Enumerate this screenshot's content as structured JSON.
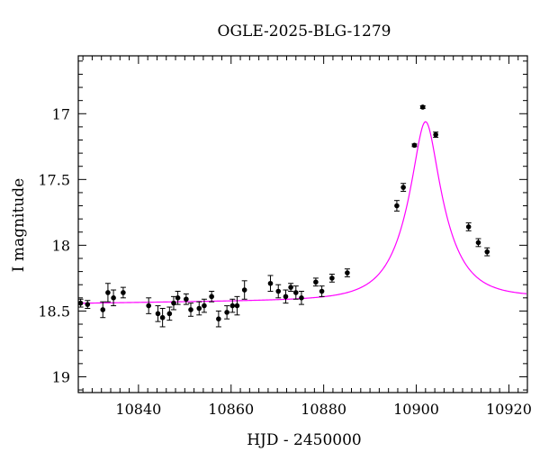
{
  "chart_data": {
    "type": "scatter",
    "title": "OGLE-2025-BLG-1279",
    "xlabel": "HJD - 2450000",
    "ylabel": "I magnitude",
    "xlim": [
      10827,
      10924
    ],
    "ylim": [
      19.12,
      16.56
    ],
    "y_inverted": true,
    "grid": false,
    "x_ticks": [
      10840,
      10860,
      10880,
      10900,
      10920
    ],
    "x_tick_labels": [
      "10840",
      "10860",
      "10880",
      "10900",
      "10920"
    ],
    "y_ticks": [
      17,
      17.5,
      18,
      18.5,
      19
    ],
    "y_tick_labels": [
      "17",
      "17.5",
      "18",
      "18.5",
      "19"
    ],
    "series": [
      {
        "marker": "filled-circle",
        "color": "#000000",
        "points": [
          {
            "x": 10827.5,
            "y": 18.44,
            "err": 0.03
          },
          {
            "x": 10829.0,
            "y": 18.45,
            "err": 0.03
          },
          {
            "x": 10832.3,
            "y": 18.49,
            "err": 0.06
          },
          {
            "x": 10833.4,
            "y": 18.36,
            "err": 0.07
          },
          {
            "x": 10834.6,
            "y": 18.4,
            "err": 0.06
          },
          {
            "x": 10836.7,
            "y": 18.36,
            "err": 0.04
          },
          {
            "x": 10842.2,
            "y": 18.46,
            "err": 0.06
          },
          {
            "x": 10844.2,
            "y": 18.52,
            "err": 0.06
          },
          {
            "x": 10845.2,
            "y": 18.55,
            "err": 0.07
          },
          {
            "x": 10846.7,
            "y": 18.52,
            "err": 0.05
          },
          {
            "x": 10847.6,
            "y": 18.44,
            "err": 0.05
          },
          {
            "x": 10848.5,
            "y": 18.4,
            "err": 0.05
          },
          {
            "x": 10850.3,
            "y": 18.41,
            "err": 0.04
          },
          {
            "x": 10851.3,
            "y": 18.49,
            "err": 0.05
          },
          {
            "x": 10853.1,
            "y": 18.48,
            "err": 0.05
          },
          {
            "x": 10854.2,
            "y": 18.46,
            "err": 0.05
          },
          {
            "x": 10855.8,
            "y": 18.39,
            "err": 0.04
          },
          {
            "x": 10857.3,
            "y": 18.56,
            "err": 0.06
          },
          {
            "x": 10859.1,
            "y": 18.51,
            "err": 0.05
          },
          {
            "x": 10860.3,
            "y": 18.46,
            "err": 0.05
          },
          {
            "x": 10861.3,
            "y": 18.46,
            "err": 0.07
          },
          {
            "x": 10862.9,
            "y": 18.34,
            "err": 0.07
          },
          {
            "x": 10868.5,
            "y": 18.29,
            "err": 0.06
          },
          {
            "x": 10870.2,
            "y": 18.35,
            "err": 0.05
          },
          {
            "x": 10871.8,
            "y": 18.39,
            "err": 0.05
          },
          {
            "x": 10872.9,
            "y": 18.32,
            "err": 0.03
          },
          {
            "x": 10874.0,
            "y": 18.36,
            "err": 0.05
          },
          {
            "x": 10875.2,
            "y": 18.4,
            "err": 0.05
          },
          {
            "x": 10878.3,
            "y": 18.28,
            "err": 0.03
          },
          {
            "x": 10879.6,
            "y": 18.35,
            "err": 0.04
          },
          {
            "x": 10881.8,
            "y": 18.25,
            "err": 0.03
          },
          {
            "x": 10885.1,
            "y": 18.21,
            "err": 0.03
          },
          {
            "x": 10895.8,
            "y": 17.7,
            "err": 0.04
          },
          {
            "x": 10897.2,
            "y": 17.56,
            "err": 0.03
          },
          {
            "x": 10899.6,
            "y": 17.24,
            "err": 0.01
          },
          {
            "x": 10901.4,
            "y": 16.95,
            "err": 0.01
          },
          {
            "x": 10904.2,
            "y": 17.16,
            "err": 0.02
          },
          {
            "x": 10911.3,
            "y": 17.86,
            "err": 0.03
          },
          {
            "x": 10913.4,
            "y": 17.98,
            "err": 0.03
          },
          {
            "x": 10915.3,
            "y": 18.05,
            "err": 0.03
          }
        ]
      }
    ],
    "model": {
      "color": "#ff00ff",
      "t0": 10902.0,
      "u0": 0.3,
      "tE": 8.0,
      "baseline_mag": 18.43,
      "baseline_slope": -0.0005,
      "baseline_ref": 10850
    }
  }
}
